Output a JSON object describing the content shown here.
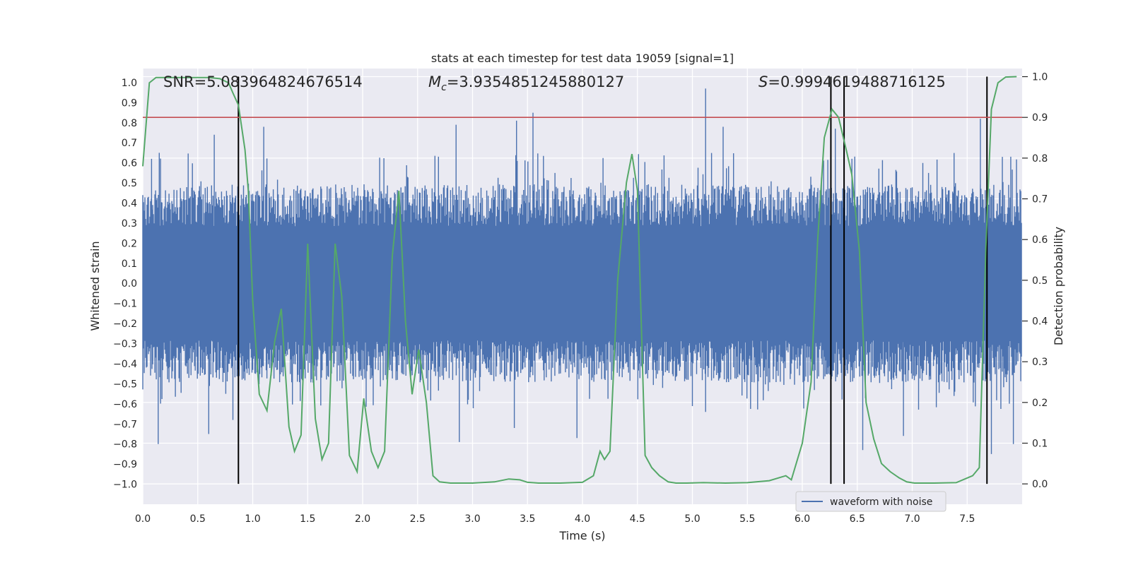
{
  "chart_data": {
    "type": "line",
    "title": "stats at each timestep for test data 19059 [signal=1]",
    "xlabel": "Time (s)",
    "ylabel_left": "Whitened strain",
    "ylabel_right": "Detection probability",
    "xlim": [
      0.0,
      8.0
    ],
    "ylim_left": [
      -1.1,
      1.07
    ],
    "ylim_right": [
      -0.05,
      1.02
    ],
    "x_ticks": [
      "0.0",
      "0.5",
      "1.0",
      "1.5",
      "2.0",
      "2.5",
      "3.0",
      "3.5",
      "4.0",
      "4.5",
      "5.0",
      "5.5",
      "6.0",
      "6.5",
      "7.0",
      "7.5"
    ],
    "y_left_ticks": [
      "1.0",
      "0.9",
      "0.8",
      "0.7",
      "0.6",
      "0.5",
      "0.4",
      "0.3",
      "0.2",
      "0.1",
      "0.0",
      "−0.1",
      "−0.2",
      "−0.3",
      "−0.4",
      "−0.5",
      "−0.6",
      "−0.7",
      "−0.8",
      "−0.9",
      "−1.0"
    ],
    "y_right_ticks": [
      "1.0",
      "0.9",
      "0.8",
      "0.7",
      "0.6",
      "0.5",
      "0.4",
      "0.3",
      "0.2",
      "0.1",
      "0.0"
    ],
    "grid": true,
    "annotations": {
      "snr": "SNR=5.083964824676514",
      "mc_symbol": "M",
      "mc_sub": "c",
      "mc_value": "=3.9354851245880127",
      "s_symbol": "S",
      "s_value": "=0.9994619488716125"
    },
    "threshold": {
      "axis": "right",
      "value": 0.9,
      "color": "#c44e52"
    },
    "detection_lines_x": [
      0.87,
      6.26,
      6.38,
      7.68
    ],
    "legend": {
      "label": "waveform with noise",
      "position": "lower-right"
    },
    "series": [
      {
        "name": "waveform with noise",
        "axis": "left",
        "color": "#4c72b0",
        "kind": "noise",
        "x_range": [
          0.0,
          8.0
        ],
        "typical_envelope": [
          -0.38,
          0.38
        ],
        "peaks": [
          {
            "x": 0.08,
            "y": 0.62
          },
          {
            "x": 0.15,
            "y": 0.65
          },
          {
            "x": 0.65,
            "y": 0.74
          },
          {
            "x": 0.87,
            "y": 0.82
          },
          {
            "x": 1.1,
            "y": 0.78
          },
          {
            "x": 2.85,
            "y": 0.79
          },
          {
            "x": 3.4,
            "y": 0.81
          },
          {
            "x": 3.55,
            "y": 0.85
          },
          {
            "x": 3.75,
            "y": 0.55
          },
          {
            "x": 5.12,
            "y": 0.97
          },
          {
            "x": 5.28,
            "y": 0.78
          },
          {
            "x": 6.3,
            "y": 0.77
          },
          {
            "x": 7.62,
            "y": 0.82
          },
          {
            "x": 7.82,
            "y": 0.63
          }
        ],
        "troughs": [
          {
            "x": 0.14,
            "y": -0.8
          },
          {
            "x": 0.6,
            "y": -0.75
          },
          {
            "x": 0.82,
            "y": -0.68
          },
          {
            "x": 2.88,
            "y": -0.79
          },
          {
            "x": 3.38,
            "y": -0.72
          },
          {
            "x": 3.95,
            "y": -0.77
          },
          {
            "x": 5.12,
            "y": -0.64
          },
          {
            "x": 6.55,
            "y": -0.83
          },
          {
            "x": 6.92,
            "y": -0.76
          },
          {
            "x": 7.72,
            "y": -0.85
          },
          {
            "x": 7.92,
            "y": -0.8
          }
        ]
      },
      {
        "name": "detection probability",
        "axis": "right",
        "color": "#55a868",
        "x": [
          0.0,
          0.06,
          0.12,
          0.2,
          0.4,
          0.6,
          0.7,
          0.78,
          0.82,
          0.87,
          0.93,
          0.96,
          1.0,
          1.06,
          1.13,
          1.2,
          1.26,
          1.33,
          1.38,
          1.44,
          1.5,
          1.57,
          1.63,
          1.69,
          1.75,
          1.81,
          1.88,
          1.95,
          2.01,
          2.08,
          2.14,
          2.2,
          2.27,
          2.33,
          2.39,
          2.45,
          2.51,
          2.58,
          2.64,
          2.7,
          2.8,
          3.0,
          3.2,
          3.33,
          3.43,
          3.5,
          3.6,
          3.8,
          4.0,
          4.1,
          4.16,
          4.2,
          4.25,
          4.32,
          4.4,
          4.45,
          4.5,
          4.57,
          4.63,
          4.7,
          4.78,
          4.85,
          4.95,
          5.1,
          5.3,
          5.5,
          5.7,
          5.85,
          5.9,
          6.0,
          6.08,
          6.14,
          6.2,
          6.27,
          6.33,
          6.4,
          6.45,
          6.52,
          6.58,
          6.65,
          6.72,
          6.8,
          6.88,
          6.95,
          7.02,
          7.1,
          7.2,
          7.4,
          7.55,
          7.61,
          7.67,
          7.72,
          7.78,
          7.85,
          7.95
        ],
        "y": [
          0.78,
          0.985,
          0.998,
          0.998,
          0.998,
          0.998,
          0.995,
          0.985,
          0.96,
          0.93,
          0.82,
          0.72,
          0.45,
          0.22,
          0.18,
          0.35,
          0.43,
          0.14,
          0.08,
          0.12,
          0.59,
          0.16,
          0.06,
          0.1,
          0.59,
          0.46,
          0.07,
          0.03,
          0.21,
          0.08,
          0.04,
          0.08,
          0.56,
          0.72,
          0.4,
          0.22,
          0.33,
          0.2,
          0.02,
          0.005,
          0.002,
          0.002,
          0.005,
          0.012,
          0.01,
          0.004,
          0.002,
          0.002,
          0.004,
          0.02,
          0.08,
          0.06,
          0.08,
          0.5,
          0.74,
          0.81,
          0.72,
          0.07,
          0.04,
          0.02,
          0.005,
          0.002,
          0.002,
          0.003,
          0.002,
          0.003,
          0.008,
          0.02,
          0.01,
          0.1,
          0.25,
          0.6,
          0.85,
          0.92,
          0.9,
          0.82,
          0.76,
          0.57,
          0.2,
          0.11,
          0.05,
          0.03,
          0.015,
          0.005,
          0.002,
          0.002,
          0.002,
          0.003,
          0.02,
          0.04,
          0.58,
          0.92,
          0.985,
          0.999,
          1.0
        ]
      }
    ]
  }
}
